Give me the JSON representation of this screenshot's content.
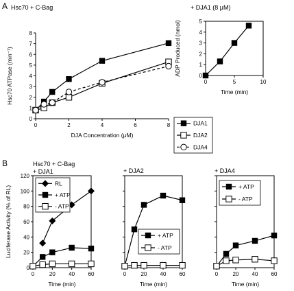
{
  "panel_labels": {
    "a": "A",
    "b": "B"
  },
  "panel_a": {
    "condition": "Hsc70 + C-Bag",
    "inset_condition": "+ DJA1 (8 μM)"
  },
  "panel_b": {
    "condition_line1": "Hsc70 + C-Bag",
    "condition_line2": "+ DJA1",
    "condition_2": "+ DJA2",
    "condition_3": "+ DJA4"
  },
  "chart_data": [
    {
      "id": "atpase",
      "type": "line",
      "xlabel": "DJA Concentration (μM)",
      "ylabel": "Hsc70 ATPase (min⁻¹)",
      "xlim": [
        0,
        8
      ],
      "ylim": [
        0,
        8
      ],
      "xticks": [
        0,
        2,
        4,
        6,
        8
      ],
      "yticks": [
        0,
        1,
        2,
        3,
        4,
        5,
        6,
        7,
        8
      ],
      "legend_position": "right",
      "series": [
        {
          "name": "DJA1",
          "marker": "square-filled",
          "dash": false,
          "x": [
            0,
            0.5,
            1,
            2,
            4,
            8
          ],
          "y": [
            0.8,
            1.6,
            2.5,
            3.7,
            5.4,
            7.05
          ]
        },
        {
          "name": "DJA2",
          "marker": "square-open",
          "dash": false,
          "x": [
            0,
            0.5,
            1,
            2,
            4,
            8
          ],
          "y": [
            0.8,
            1.0,
            1.5,
            2.0,
            3.3,
            5.3
          ]
        },
        {
          "name": "DJA4",
          "marker": "circle-open",
          "dash": true,
          "x": [
            0,
            0.5,
            1,
            2,
            4,
            8
          ],
          "y": [
            0.8,
            1.35,
            1.5,
            2.5,
            3.4,
            4.9
          ]
        }
      ]
    },
    {
      "id": "adp",
      "type": "line",
      "xlabel": "Time (min)",
      "ylabel": "ADP Produced (nmol)",
      "xlim": [
        0,
        10
      ],
      "ylim": [
        0,
        5
      ],
      "xticks": [
        0,
        5,
        10
      ],
      "yticks": [
        0,
        1,
        2,
        3,
        4,
        5
      ],
      "series": [
        {
          "marker": "square-filled",
          "dash": false,
          "x": [
            0,
            2.5,
            5,
            7.5
          ],
          "y": [
            0,
            1.3,
            3.0,
            4.6
          ]
        }
      ]
    },
    {
      "id": "luc_dja1",
      "type": "line",
      "xlabel": "Time (min)",
      "ylabel": "Luciferase Activity (% of RL)",
      "xlim": [
        0,
        60
      ],
      "ylim": [
        0,
        120
      ],
      "xticks": [
        0,
        20,
        40,
        60
      ],
      "yticks": [
        0,
        20,
        40,
        60,
        80,
        100,
        120
      ],
      "legend_position": "top-left",
      "series": [
        {
          "name": "RL",
          "marker": "diamond-filled",
          "x": [
            10,
            20,
            40,
            60
          ],
          "y": [
            32,
            61,
            82,
            100
          ]
        },
        {
          "name": "+ ATP",
          "marker": "square-filled",
          "x": [
            0,
            10,
            20,
            40,
            60
          ],
          "y": [
            2,
            14,
            20,
            26,
            25
          ]
        },
        {
          "name": "- ATP",
          "marker": "square-open",
          "x": [
            0,
            10,
            20,
            40,
            60
          ],
          "y": [
            2,
            4,
            5,
            5,
            5
          ]
        }
      ]
    },
    {
      "id": "luc_dja2",
      "type": "line",
      "xlabel": "Time (min)",
      "xlim": [
        0,
        60
      ],
      "ylim": [
        0,
        120
      ],
      "xticks": [
        0,
        20,
        40,
        60
      ],
      "legend_position": "bottom-right",
      "series": [
        {
          "name": "+ ATP",
          "marker": "square-filled",
          "x": [
            0,
            10,
            20,
            40,
            60
          ],
          "y": [
            2,
            50,
            82,
            94,
            88
          ]
        },
        {
          "name": "- ATP",
          "marker": "square-open",
          "x": [
            0,
            10,
            20,
            40,
            60
          ],
          "y": [
            2,
            3,
            3,
            3,
            3
          ]
        }
      ]
    },
    {
      "id": "luc_dja4",
      "type": "line",
      "xlabel": "Time (min)",
      "xlim": [
        0,
        60
      ],
      "ylim": [
        0,
        120
      ],
      "xticks": [
        0,
        20,
        40,
        60
      ],
      "legend_position": "top-left",
      "series": [
        {
          "name": "+ ATP",
          "marker": "square-filled",
          "x": [
            0,
            10,
            20,
            40,
            60
          ],
          "y": [
            2,
            18,
            29,
            35,
            42
          ]
        },
        {
          "name": "- ATP",
          "marker": "square-open",
          "x": [
            0,
            10,
            20,
            40,
            60
          ],
          "y": [
            2,
            9,
            10,
            11,
            9
          ]
        }
      ]
    }
  ]
}
